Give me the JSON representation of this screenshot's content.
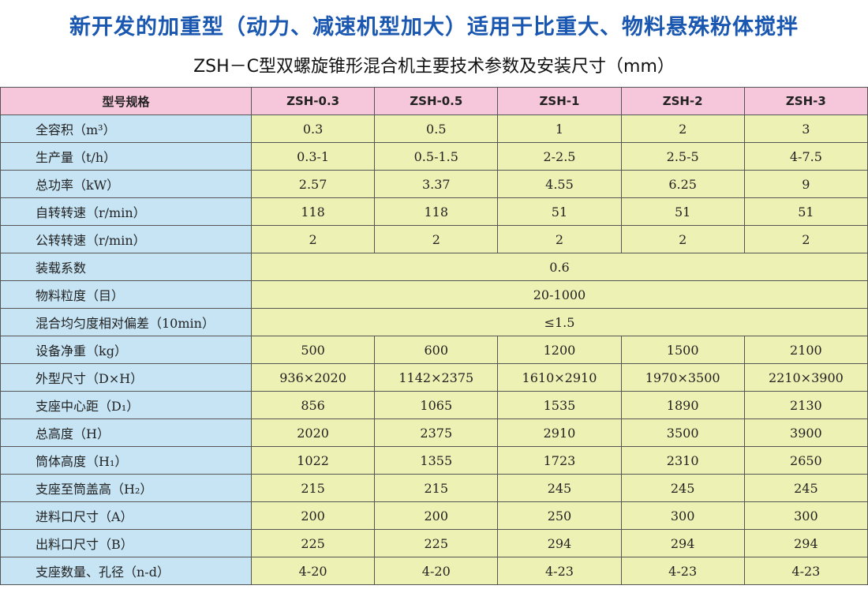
{
  "title": "新开发的加重型（动力、减速机型加大）适用于比重大、物料悬殊粉体搅拌",
  "subtitle": "ZSH－C型双螺旋锥形混合机主要技术参数及安装尺寸（mm）",
  "table": {
    "header": [
      "型号规格",
      "ZSH-0.3",
      "ZSH-0.5",
      "ZSH-1",
      "ZSH-2",
      "ZSH-3"
    ],
    "rows": [
      [
        "全容积（m³）",
        "0.3",
        "0.5",
        "1",
        "2",
        "3"
      ],
      [
        "生产量（t/h）",
        "0.3-1",
        "0.5-1.5",
        "2-2.5",
        "2.5-5",
        "4-7.5"
      ],
      [
        "总功率（kW）",
        "2.57",
        "3.37",
        "4.55",
        "6.25",
        "9"
      ],
      [
        "自转转速（r/min）",
        "118",
        "118",
        "51",
        "51",
        "51"
      ],
      [
        "公转转速（r/min）",
        "2",
        "2",
        "2",
        "2",
        "2"
      ],
      [
        "装载系数",
        "0.6"
      ],
      [
        "物料粒度（目）",
        "20-1000"
      ],
      [
        "混合均匀度相对偏差（10min）",
        "≤1.5"
      ],
      [
        "设备净重（kg）",
        "500",
        "600",
        "1200",
        "1500",
        "2100"
      ],
      [
        "外型尺寸（D×H）",
        "936×2020",
        "1142×2375",
        "1610×2910",
        "1970×3500",
        "2210×3900"
      ],
      [
        "支座中心距（D₁）",
        "856",
        "1065",
        "1535",
        "1890",
        "2130"
      ],
      [
        "总高度（H）",
        "2020",
        "2375",
        "2910",
        "3500",
        "3900"
      ],
      [
        "筒体高度（H₁）",
        "1022",
        "1355",
        "1723",
        "2310",
        "2650"
      ],
      [
        "支座至筒盖高（H₂）",
        "215",
        "215",
        "245",
        "245",
        "245"
      ],
      [
        "进料口尺寸（A）",
        "200",
        "200",
        "250",
        "300",
        "300"
      ],
      [
        "出料口尺寸（B）",
        "225",
        "225",
        "294",
        "294",
        "294"
      ],
      [
        "支座数量、孔径（n-d）",
        "4-20",
        "4-20",
        "4-23",
        "4-23",
        "4-23"
      ]
    ]
  }
}
